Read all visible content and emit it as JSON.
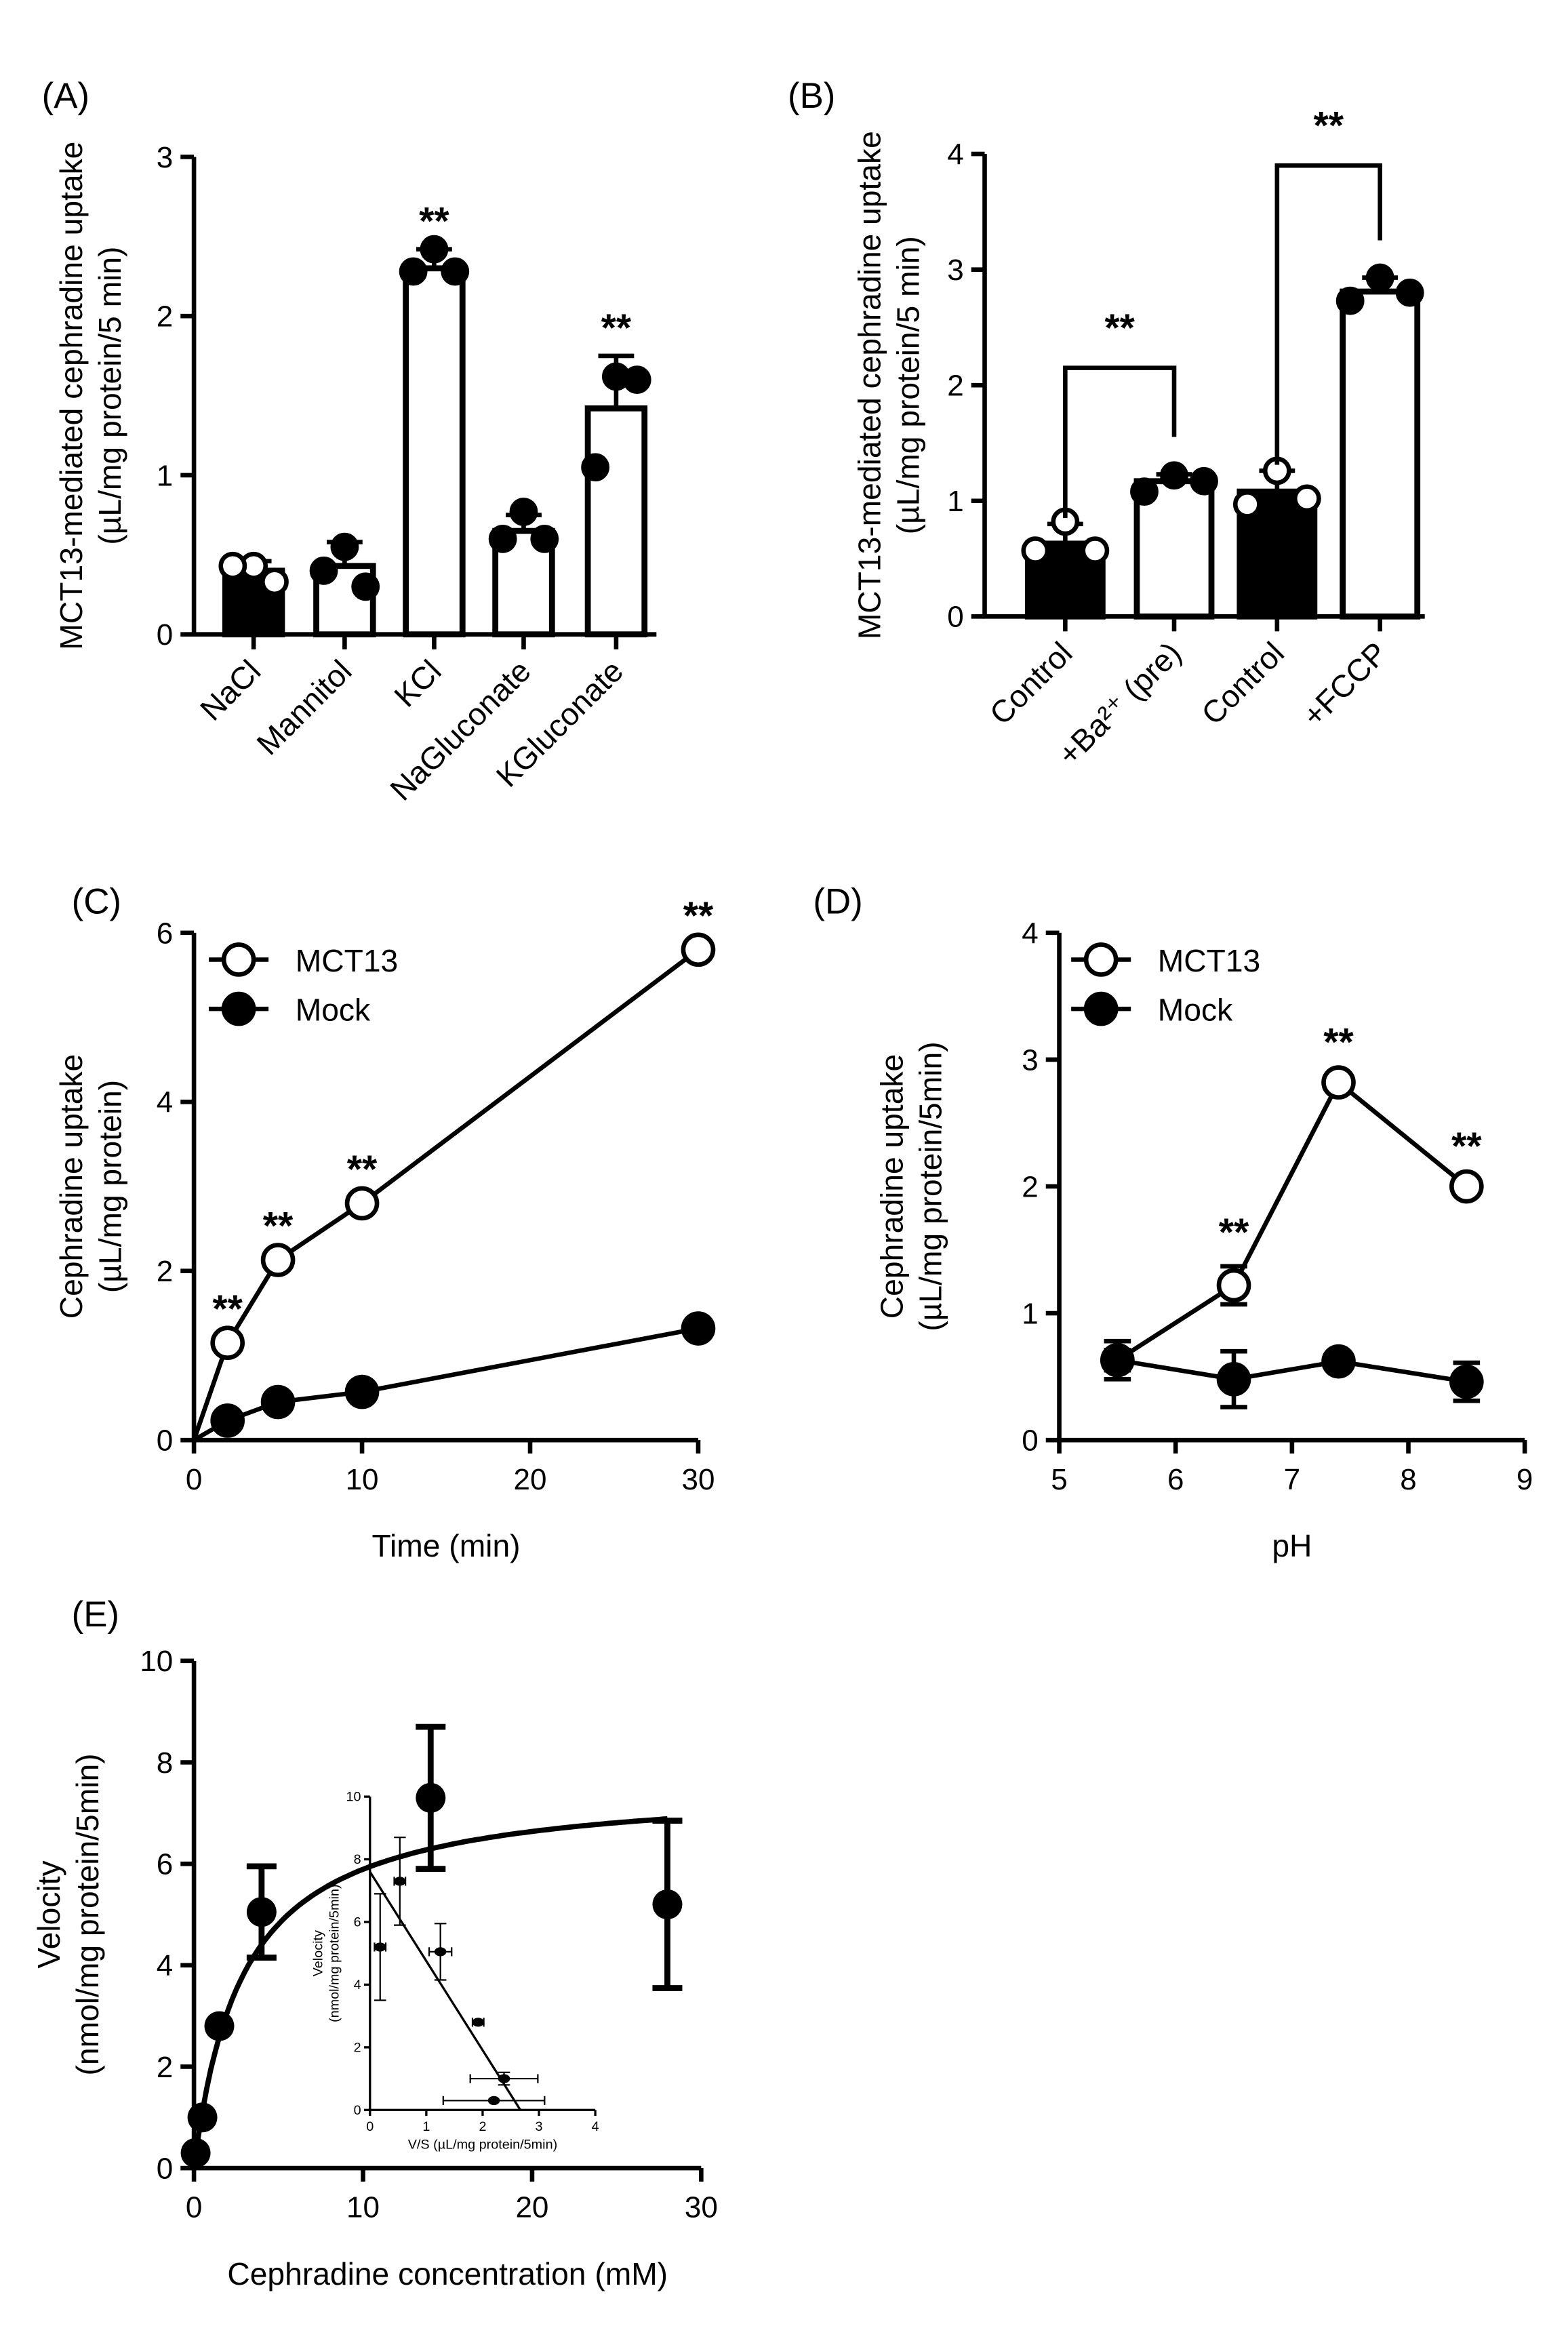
{
  "chart_data": [
    {
      "id": "A",
      "panel_label": "(A)",
      "type": "bar",
      "ylabel": [
        "MCT13-mediated cephradine uptake",
        "(µL/mg protein/5 min)"
      ],
      "ylim": [
        0,
        3
      ],
      "yticks": [
        "0",
        "1",
        "2",
        "3"
      ],
      "categories": [
        "NaCl",
        "Mannitol",
        "KCl",
        "NaGluconate",
        "KGluconate"
      ],
      "values": [
        0.4,
        0.43,
        2.3,
        0.65,
        1.42
      ],
      "errors": [
        0.06,
        0.15,
        0.12,
        0.1,
        0.33
      ],
      "points": [
        [
          0.43,
          0.43,
          0.33
        ],
        [
          0.55,
          0.4,
          0.3
        ],
        [
          2.42,
          2.28,
          2.28
        ],
        [
          0.77,
          0.6,
          0.6
        ],
        [
          1.62,
          1.05,
          1.6
        ]
      ],
      "filled": [
        true,
        false,
        false,
        false,
        false
      ],
      "significance": [
        "",
        "",
        "**",
        "",
        "**"
      ]
    },
    {
      "id": "B",
      "panel_label": "(B)",
      "type": "bar",
      "ylabel": [
        "MCT13-mediated cephradine uptake",
        "(µL/mg protein/5 min)"
      ],
      "ylim": [
        0,
        4
      ],
      "yticks": [
        "0",
        "1",
        "2",
        "3",
        "4"
      ],
      "categories": [
        "Control",
        "+Ba²⁺ (pre)",
        "Control",
        "+FCCP"
      ],
      "values": [
        0.63,
        1.17,
        1.08,
        2.81
      ],
      "errors": [
        0.17,
        0.06,
        0.18,
        0.12
      ],
      "points": [
        [
          0.82,
          0.57,
          0.57
        ],
        [
          1.22,
          1.08,
          1.17
        ],
        [
          1.26,
          0.97,
          1.02
        ],
        [
          2.93,
          2.73,
          2.8
        ]
      ],
      "filled": [
        true,
        false,
        true,
        false
      ],
      "brackets": [
        {
          "from": 0,
          "to": 1,
          "level": 2.15,
          "label": "**"
        },
        {
          "from": 2,
          "to": 3,
          "level": 3.9,
          "label": "**"
        }
      ]
    },
    {
      "id": "C",
      "panel_label": "(C)",
      "type": "line",
      "xlabel": "Time (min)",
      "ylabel": [
        "Cephradine uptake",
        "(µL/mg protein)"
      ],
      "xlim": [
        0,
        30
      ],
      "ylim": [
        0,
        6
      ],
      "xticks": [
        "0",
        "10",
        "20",
        "30"
      ],
      "yticks": [
        "0",
        "2",
        "4",
        "6"
      ],
      "series": [
        {
          "name": "MCT13",
          "x": [
            0,
            2,
            5,
            10,
            30
          ],
          "y": [
            0,
            1.15,
            2.13,
            2.8,
            5.8
          ],
          "open": true,
          "significance": [
            "",
            "**",
            "**",
            "**",
            "**"
          ]
        },
        {
          "name": "Mock",
          "x": [
            0,
            2,
            5,
            10,
            30
          ],
          "y": [
            0,
            0.23,
            0.45,
            0.57,
            1.32
          ],
          "open": false
        }
      ],
      "legend": "top-left"
    },
    {
      "id": "D",
      "panel_label": "(D)",
      "type": "line",
      "xlabel": "pH",
      "ylabel": [
        "Cephradine uptake",
        "(µL/mg protein/5min)"
      ],
      "xlim": [
        5,
        9
      ],
      "ylim": [
        0,
        4
      ],
      "xticks": [
        "5",
        "6",
        "7",
        "8",
        "9"
      ],
      "yticks": [
        "0",
        "1",
        "2",
        "3",
        "4"
      ],
      "series": [
        {
          "name": "MCT13",
          "x": [
            5.5,
            6.5,
            7.4,
            8.5
          ],
          "y": [
            0.63,
            1.22,
            2.82,
            2.0
          ],
          "err": [
            0.08,
            0.15,
            0.05,
            0.05
          ],
          "open": true,
          "significance": [
            "",
            "**",
            "**",
            "**"
          ]
        },
        {
          "name": "Mock",
          "x": [
            5.5,
            6.5,
            7.4,
            8.5
          ],
          "y": [
            0.63,
            0.48,
            0.62,
            0.46
          ],
          "err": [
            0.15,
            0.22,
            0.05,
            0.15
          ],
          "open": false
        }
      ],
      "legend": "top-left"
    },
    {
      "id": "E",
      "panel_label": "(E)",
      "type": "scatter",
      "xlabel": "Cephradine concentration (mM)",
      "ylabel": [
        "Velocity",
        "(nmol/mg protein/5min)"
      ],
      "xlim": [
        0,
        30
      ],
      "ylim": [
        0,
        10
      ],
      "xticks": [
        "0",
        "10",
        "20",
        "30"
      ],
      "yticks": [
        "0",
        "2",
        "4",
        "6",
        "8",
        "10"
      ],
      "x": [
        0.1,
        0.5,
        1.5,
        4,
        14,
        28
      ],
      "y": [
        0.3,
        1.0,
        2.8,
        5.05,
        7.3,
        5.2
      ],
      "err": [
        0,
        0,
        0,
        0.9,
        1.4,
        1.65
      ],
      "fit": {
        "model": "Michaelis-Menten",
        "Vmax": 7.6,
        "Km": 2.9
      },
      "inset": {
        "type": "scatter",
        "xlabel": "V/S (µL/mg protein/5min)",
        "ylabel": [
          "Velocity",
          "(nmol/mg protein/5min)"
        ],
        "xlim": [
          0,
          4
        ],
        "ylim": [
          0,
          10
        ],
        "xticks": [
          "0",
          "1",
          "2",
          "3",
          "4"
        ],
        "yticks": [
          "0",
          "2",
          "4",
          "6",
          "8",
          "10"
        ],
        "x": [
          0.18,
          0.53,
          1.25,
          1.92,
          2.38,
          2.2
        ],
        "y": [
          5.2,
          7.3,
          5.05,
          2.8,
          1.0,
          0.3
        ],
        "xerr": [
          0.1,
          0.1,
          0.2,
          0.1,
          0.6,
          0.9
        ],
        "yerr": [
          1.7,
          1.4,
          0.9,
          0,
          0.2,
          0
        ],
        "fit_line": {
          "intercept_y": 7.6,
          "intercept_x": 2.67
        }
      }
    }
  ]
}
